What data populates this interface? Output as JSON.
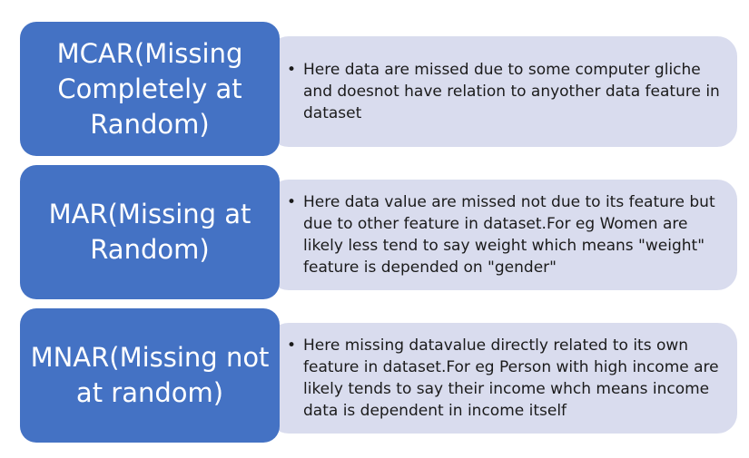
{
  "colors": {
    "label_fill": "#4472c4",
    "desc_fill": "#d9dcee",
    "label_text": "#ffffff",
    "desc_text": "#1b1b1b"
  },
  "bullet_glyph": "•",
  "rows": [
    {
      "label": "MCAR(Missing Completely at Random)",
      "description": "Here data are missed due to some computer gliche and doesnot have relation to anyother data feature in dataset"
    },
    {
      "label": "MAR(Missing at Random)",
      "description": "Here data value are missed not due to its feature but due to other feature in dataset.For eg Women are likely less tend to say weight which means \"weight\" feature is depended on \"gender\""
    },
    {
      "label": "MNAR(Missing not at random)",
      "description": "Here missing datavalue directly related to its own feature in dataset.For  eg Person with high income are likely tends to say their income whch means income data is dependent in income itself"
    }
  ]
}
